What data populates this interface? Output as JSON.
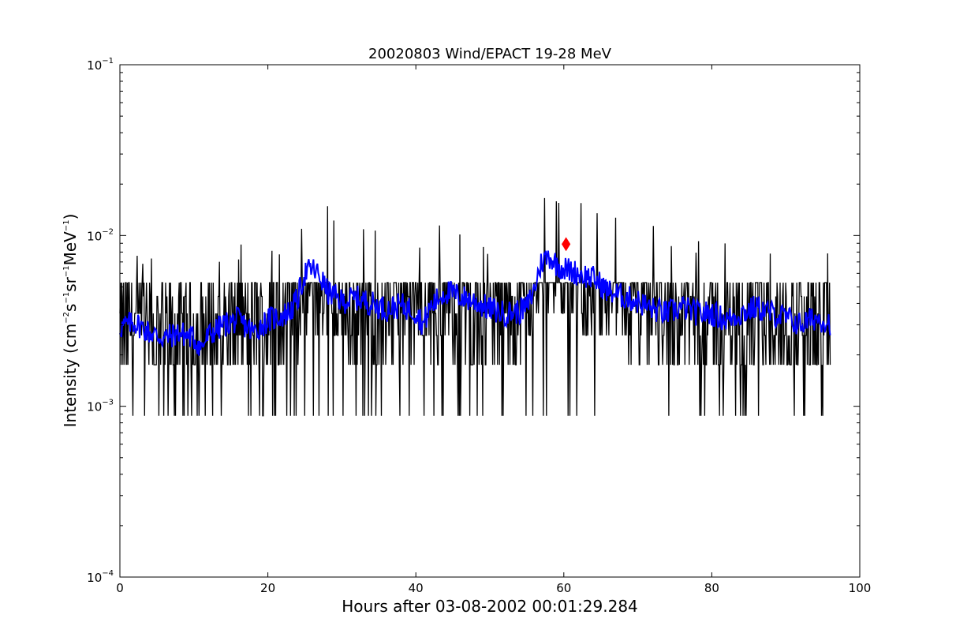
{
  "chart_data": {
    "type": "line",
    "title": "20020803 Wind/EPACT 19-28 MeV",
    "xlabel": "Hours after 03-08-2002 00:01:29.284",
    "ylabel": {
      "prefix": "Intensity (cm",
      "p1": "−2",
      "mid1": "s",
      "p2": "−1",
      "mid2": "sr",
      "p3": "−1",
      "mid3": "MeV",
      "p4": "−1",
      "suffix": ")"
    },
    "xlim": [
      0,
      100
    ],
    "ylim": [
      0.0001,
      0.1
    ],
    "yscale": "log",
    "grid": false,
    "x_ticks": [
      {
        "value": 0,
        "label": "0"
      },
      {
        "value": 20,
        "label": "20"
      },
      {
        "value": 40,
        "label": "40"
      },
      {
        "value": 60,
        "label": "60"
      },
      {
        "value": 80,
        "label": "80"
      },
      {
        "value": 100,
        "label": "100"
      }
    ],
    "y_ticks": [
      {
        "value": 0.0001,
        "base": "10",
        "exp": "−4"
      },
      {
        "value": 0.001,
        "base": "10",
        "exp": "−3"
      },
      {
        "value": 0.01,
        "base": "10",
        "exp": "−2"
      },
      {
        "value": 0.1,
        "base": "10",
        "exp": "−1"
      }
    ],
    "series": [
      {
        "role": "raw",
        "color": "#000000",
        "x_range": [
          0,
          96
        ],
        "points": 1150,
        "levels": [
          0.00088,
          0.00175,
          0.0026,
          0.0035,
          0.0044,
          0.0053
        ],
        "baseline_profile": [
          [
            0,
            0.0029
          ],
          [
            5,
            0.0027
          ],
          [
            10,
            0.0026
          ],
          [
            15,
            0.0029
          ],
          [
            20,
            0.0032
          ],
          [
            23,
            0.0038
          ],
          [
            25,
            0.0052
          ],
          [
            27,
            0.0055
          ],
          [
            30,
            0.0042
          ],
          [
            35,
            0.0039
          ],
          [
            40,
            0.0037
          ],
          [
            43,
            0.0045
          ],
          [
            47,
            0.0038
          ],
          [
            50,
            0.0034
          ],
          [
            53,
            0.0036
          ],
          [
            55,
            0.0042
          ],
          [
            57,
            0.0075
          ],
          [
            59,
            0.007
          ],
          [
            61,
            0.0064
          ],
          [
            63,
            0.0052
          ],
          [
            66,
            0.0045
          ],
          [
            70,
            0.004
          ],
          [
            75,
            0.0036
          ],
          [
            80,
            0.0034
          ],
          [
            85,
            0.0036
          ],
          [
            88,
            0.0033
          ],
          [
            92,
            0.0031
          ],
          [
            96,
            0.003
          ]
        ]
      },
      {
        "role": "smoothed",
        "color": "#0000ff",
        "x": [
          0,
          2,
          4,
          6,
          8,
          10,
          11,
          12,
          14,
          16,
          18,
          20,
          22,
          23,
          24,
          25,
          26,
          27,
          28,
          30,
          32,
          34,
          36,
          38,
          40,
          41,
          42,
          44,
          46,
          48,
          50,
          52,
          54,
          55,
          56,
          57,
          58,
          59,
          60,
          61,
          62,
          64,
          66,
          68,
          70,
          72,
          74,
          76,
          78,
          80,
          82,
          84,
          86,
          88,
          90,
          92,
          94,
          96
        ],
        "y": [
          0.0029,
          0.0031,
          0.0027,
          0.0025,
          0.0027,
          0.0025,
          0.0022,
          0.0026,
          0.003,
          0.0032,
          0.0027,
          0.0032,
          0.0034,
          0.0036,
          0.0042,
          0.006,
          0.0064,
          0.0058,
          0.0047,
          0.0041,
          0.0043,
          0.004,
          0.0037,
          0.0039,
          0.0036,
          0.003,
          0.0038,
          0.0047,
          0.0044,
          0.0041,
          0.0037,
          0.0035,
          0.0036,
          0.0038,
          0.0048,
          0.007,
          0.0076,
          0.0068,
          0.0064,
          0.0062,
          0.006,
          0.0056,
          0.0047,
          0.0044,
          0.0041,
          0.0037,
          0.0035,
          0.0038,
          0.0035,
          0.0035,
          0.0032,
          0.0035,
          0.0038,
          0.0035,
          0.0033,
          0.003,
          0.0033,
          0.0031
        ]
      }
    ],
    "marker": {
      "x": 60.3,
      "y": 0.0089,
      "color": "#ff0000"
    }
  }
}
